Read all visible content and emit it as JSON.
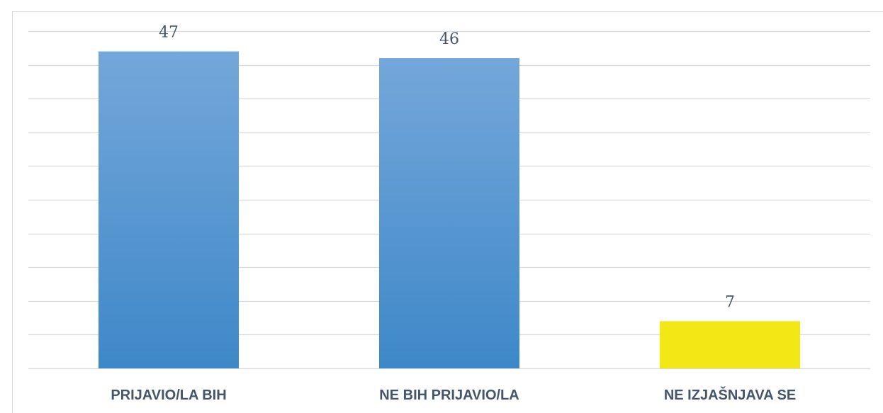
{
  "chart_data": {
    "type": "bar",
    "categories": [
      "PRIJAVIO/LA BIH",
      "NE BIH PRIJAVIO/LA",
      "NE IZJAŠNJAVA SE"
    ],
    "values": [
      47,
      46,
      7
    ],
    "colors": [
      "#4a90d0",
      "#4a90d0",
      "#f2e816"
    ],
    "ylim": [
      0,
      50
    ],
    "yticks": [
      0,
      5,
      10,
      15,
      20,
      25,
      30,
      35,
      40,
      45,
      50
    ],
    "grid": true
  }
}
